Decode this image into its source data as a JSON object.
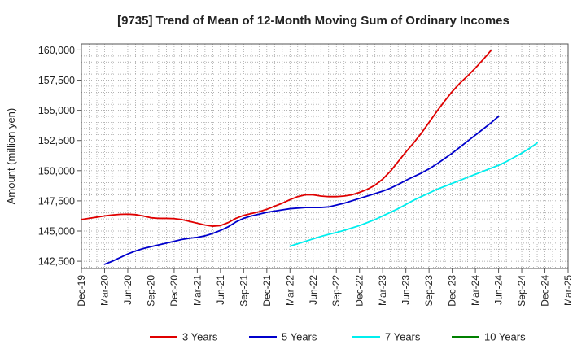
{
  "chart_data": {
    "type": "line",
    "title": "[9735]  Trend of Mean of 12-Month Moving Sum of Ordinary Incomes",
    "xlabel": "",
    "ylabel": "Amount (million yen)",
    "ylim": [
      141900,
      160500
    ],
    "grid": true,
    "legend_position": "bottom",
    "x_start": "Dec-19",
    "x_end": "Mar-25",
    "x_ticks": [
      "Dec-19",
      "Mar-20",
      "Jun-20",
      "Sep-20",
      "Dec-20",
      "Mar-21",
      "Jun-21",
      "Sep-21",
      "Dec-21",
      "Mar-22",
      "Jun-22",
      "Sep-22",
      "Dec-22",
      "Mar-23",
      "Jun-23",
      "Sep-23",
      "Dec-23",
      "Mar-24",
      "Jun-24",
      "Sep-24",
      "Dec-24",
      "Mar-25"
    ],
    "y_ticks": [
      {
        "value": 142500,
        "label": "142,500"
      },
      {
        "value": 145000,
        "label": "145,000"
      },
      {
        "value": 147500,
        "label": "147,500"
      },
      {
        "value": 150000,
        "label": "150,000"
      },
      {
        "value": 152500,
        "label": "152,500"
      },
      {
        "value": 155000,
        "label": "155,000"
      },
      {
        "value": 157500,
        "label": "157,500"
      },
      {
        "value": 160000,
        "label": "160,000"
      }
    ],
    "series": [
      {
        "name": "3 Years",
        "color": "#e00000",
        "start": "Dec-19",
        "values": [
          145950,
          146050,
          146150,
          146250,
          146330,
          146380,
          146400,
          146360,
          146250,
          146100,
          146050,
          146050,
          146030,
          145950,
          145800,
          145650,
          145500,
          145400,
          145450,
          145700,
          146050,
          146300,
          146450,
          146600,
          146800,
          147050,
          147300,
          147600,
          147850,
          148000,
          148000,
          147900,
          147850,
          147850,
          147900,
          148000,
          148200,
          148450,
          148800,
          149300,
          149950,
          150750,
          151550,
          152300,
          153100,
          154000,
          154900,
          155750,
          156550,
          157250,
          157850,
          158500,
          159200,
          159950
        ]
      },
      {
        "name": "5 Years",
        "color": "#0000cc",
        "start": "Mar-20",
        "values": [
          142250,
          142500,
          142800,
          143100,
          143350,
          143550,
          143700,
          143850,
          144000,
          144150,
          144300,
          144400,
          144480,
          144600,
          144800,
          145050,
          145350,
          145750,
          146050,
          146250,
          146400,
          146550,
          146650,
          146750,
          146850,
          146900,
          146950,
          146950,
          146950,
          147000,
          147150,
          147300,
          147500,
          147700,
          147900,
          148100,
          148300,
          148550,
          148850,
          149200,
          149500,
          149800,
          150150,
          150550,
          151000,
          151450,
          151950,
          152450,
          152950,
          153450,
          153950,
          154500
        ]
      },
      {
        "name": "7 Years",
        "color": "#00eeee",
        "start": "Mar-22",
        "values": [
          143750,
          143950,
          144150,
          144350,
          144550,
          144720,
          144880,
          145050,
          145250,
          145450,
          145700,
          145950,
          146250,
          146550,
          146850,
          147200,
          147550,
          147850,
          148150,
          148450,
          148700,
          148950,
          149200,
          149450,
          149700,
          149950,
          150200,
          150450,
          150750,
          151100,
          151450,
          151850,
          152300
        ]
      },
      {
        "name": "10 Years",
        "color": "#008000",
        "start": "Dec-24",
        "values": []
      }
    ]
  }
}
